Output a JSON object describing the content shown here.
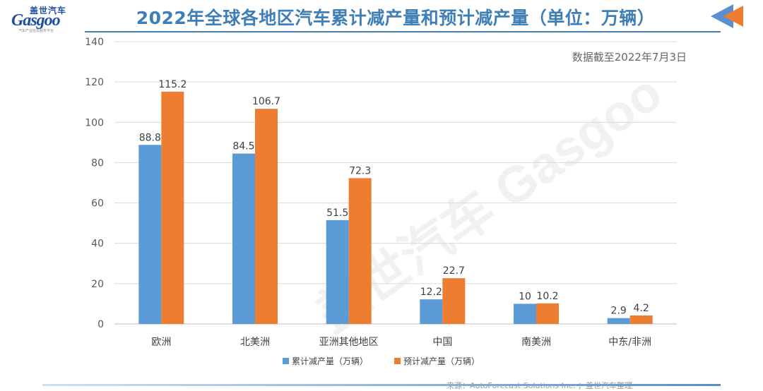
{
  "header": {
    "logo_top": "盖世汽车",
    "logo_main": "Gasgoo",
    "logo_sub": "汽车产业信息服务平台",
    "title": "2022年全球各地区汽车累计减产量和预计减产量（单位：万辆）",
    "note": "数据截至2022年7月3日"
  },
  "footer": {
    "source": "来源：AutoForecast Solutions Inc. ；盖世汽车整理"
  },
  "watermark": "盖世汽车 Gasgoo",
  "colors": {
    "series1": "#5b9bd5",
    "series2": "#ed7d31",
    "title": "#3f7fb6",
    "grid": "#d9d9d9"
  },
  "chart_data": {
    "type": "bar",
    "title": "2022年全球各地区汽车累计减产量和预计减产量（单位：万辆）",
    "categories": [
      "欧洲",
      "北美洲",
      "亚洲其他地区",
      "中国",
      "南美洲",
      "中东/非洲"
    ],
    "series": [
      {
        "name": "累计减产量（万辆）",
        "values": [
          88.8,
          84.5,
          51.5,
          12.2,
          10,
          2.9
        ],
        "labels": [
          "88.8",
          "84.5",
          "51.5",
          "12.2",
          "10",
          "2.9"
        ]
      },
      {
        "name": "预计减产量（万辆）",
        "values": [
          115.2,
          106.7,
          72.3,
          22.7,
          10.2,
          4.2
        ],
        "labels": [
          "115.2",
          "106.7",
          "72.3",
          "22.7",
          "10.2",
          "4.2"
        ]
      }
    ],
    "ylim": [
      0,
      140
    ],
    "yticks": [
      0,
      20,
      40,
      60,
      80,
      100,
      120,
      140
    ],
    "xlabel": "",
    "ylabel": "",
    "grid": true,
    "legend": "bottom"
  }
}
